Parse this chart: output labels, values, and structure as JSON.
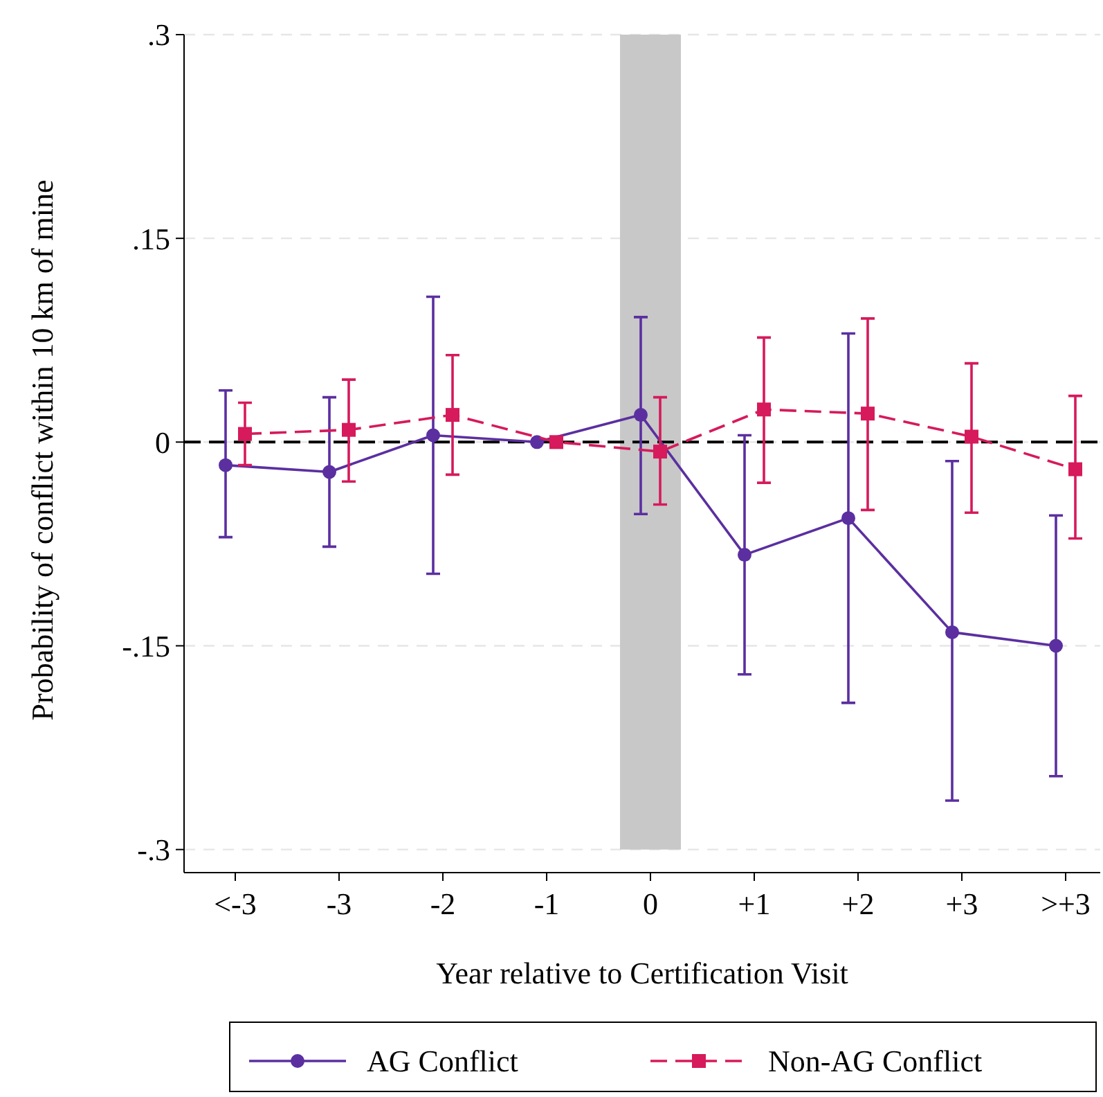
{
  "chart_data": {
    "type": "line",
    "xlabel": "Year relative to Certification Visit",
    "ylabel": "Probability of conflict within 10 km of mine",
    "categories": [
      "<-3",
      "-3",
      "-2",
      "-1",
      "0",
      "+1",
      "+2",
      "+3",
      ">+3"
    ],
    "series": [
      {
        "name": "AG Conflict",
        "color": "#5b2fa0",
        "marker": "circle",
        "line_style": "solid",
        "values": [
          -0.017,
          -0.022,
          0.005,
          0.0,
          0.02,
          -0.083,
          -0.056,
          -0.14,
          -0.15
        ],
        "errors": [
          [
            -0.07,
            0.038
          ],
          [
            -0.077,
            0.033
          ],
          [
            -0.097,
            0.107
          ],
          null,
          [
            -0.053,
            0.092
          ],
          [
            -0.171,
            0.005
          ],
          [
            -0.192,
            0.08
          ],
          [
            -0.264,
            -0.014
          ],
          [
            -0.246,
            -0.054
          ]
        ]
      },
      {
        "name": "Non-AG Conflict",
        "color": "#d61a5c",
        "marker": "square",
        "line_style": "dashed",
        "values": [
          0.006,
          0.009,
          0.02,
          0.0,
          -0.007,
          0.024,
          0.021,
          0.004,
          -0.02
        ],
        "errors": [
          [
            -0.017,
            0.029
          ],
          [
            -0.029,
            0.046
          ],
          [
            -0.024,
            0.064
          ],
          null,
          [
            -0.046,
            0.033
          ],
          [
            -0.03,
            0.077
          ],
          [
            -0.05,
            0.091
          ],
          [
            -0.052,
            0.058
          ],
          [
            -0.071,
            0.034
          ]
        ]
      }
    ],
    "ylim": [
      -0.317,
      0.3
    ],
    "yticks": [
      {
        "value": -0.3,
        "label": "-.3"
      },
      {
        "value": -0.15,
        "label": "-.15"
      },
      {
        "value": 0,
        "label": "0"
      },
      {
        "value": 0.15,
        "label": ".15"
      },
      {
        "value": 0.3,
        "label": ".3"
      }
    ],
    "grid": "y",
    "ref_lines": [
      {
        "axis": "y",
        "value": 0,
        "color": "#000000",
        "line_style": "dashed"
      }
    ],
    "bands": [
      {
        "axis": "x",
        "from": "0",
        "to": "0",
        "color": "#c8c8c8"
      }
    ],
    "legend": "bottom"
  }
}
